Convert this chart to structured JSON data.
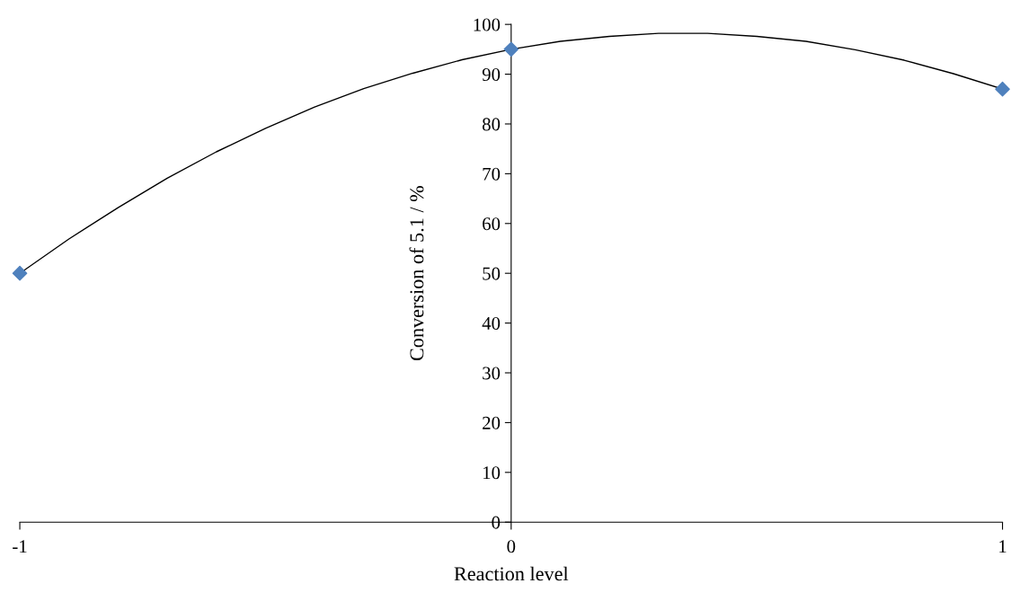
{
  "chart_data": {
    "type": "scatter",
    "xlabel": "Reaction level",
    "ylabel": "Conversion of 5.1 / %",
    "x": [
      -1,
      0,
      1
    ],
    "series": [
      {
        "color": "#4f81bd",
        "marker": "diamond",
        "values": [
          50,
          95,
          87
        ]
      },
      {
        "type": "line",
        "color": "#000000",
        "marker": "none",
        "x": [
          -1,
          -0.9,
          -0.8,
          -0.7,
          -0.6,
          -0.5,
          -0.4,
          -0.3,
          -0.2,
          -0.1,
          0,
          0.1,
          0.2,
          0.3,
          0.35,
          0.4,
          0.5,
          0.6,
          0.7,
          0.8,
          0.9,
          1
        ],
        "values": [
          50,
          56.9,
          63.2,
          69.1,
          74.4,
          79.1,
          83.4,
          87.1,
          90.2,
          92.9,
          95,
          96.6,
          97.6,
          98.2,
          98.2,
          98.2,
          97.6,
          96.6,
          94.9,
          92.8,
          90.1,
          87
        ]
      }
    ],
    "xlim": [
      -1,
      1
    ],
    "xticks": [
      -1,
      0,
      1
    ],
    "ylim": [
      0,
      100
    ],
    "yticks": [
      0,
      10,
      20,
      30,
      40,
      50,
      60,
      70,
      80,
      90,
      100
    ],
    "grid": false,
    "legend": false
  }
}
